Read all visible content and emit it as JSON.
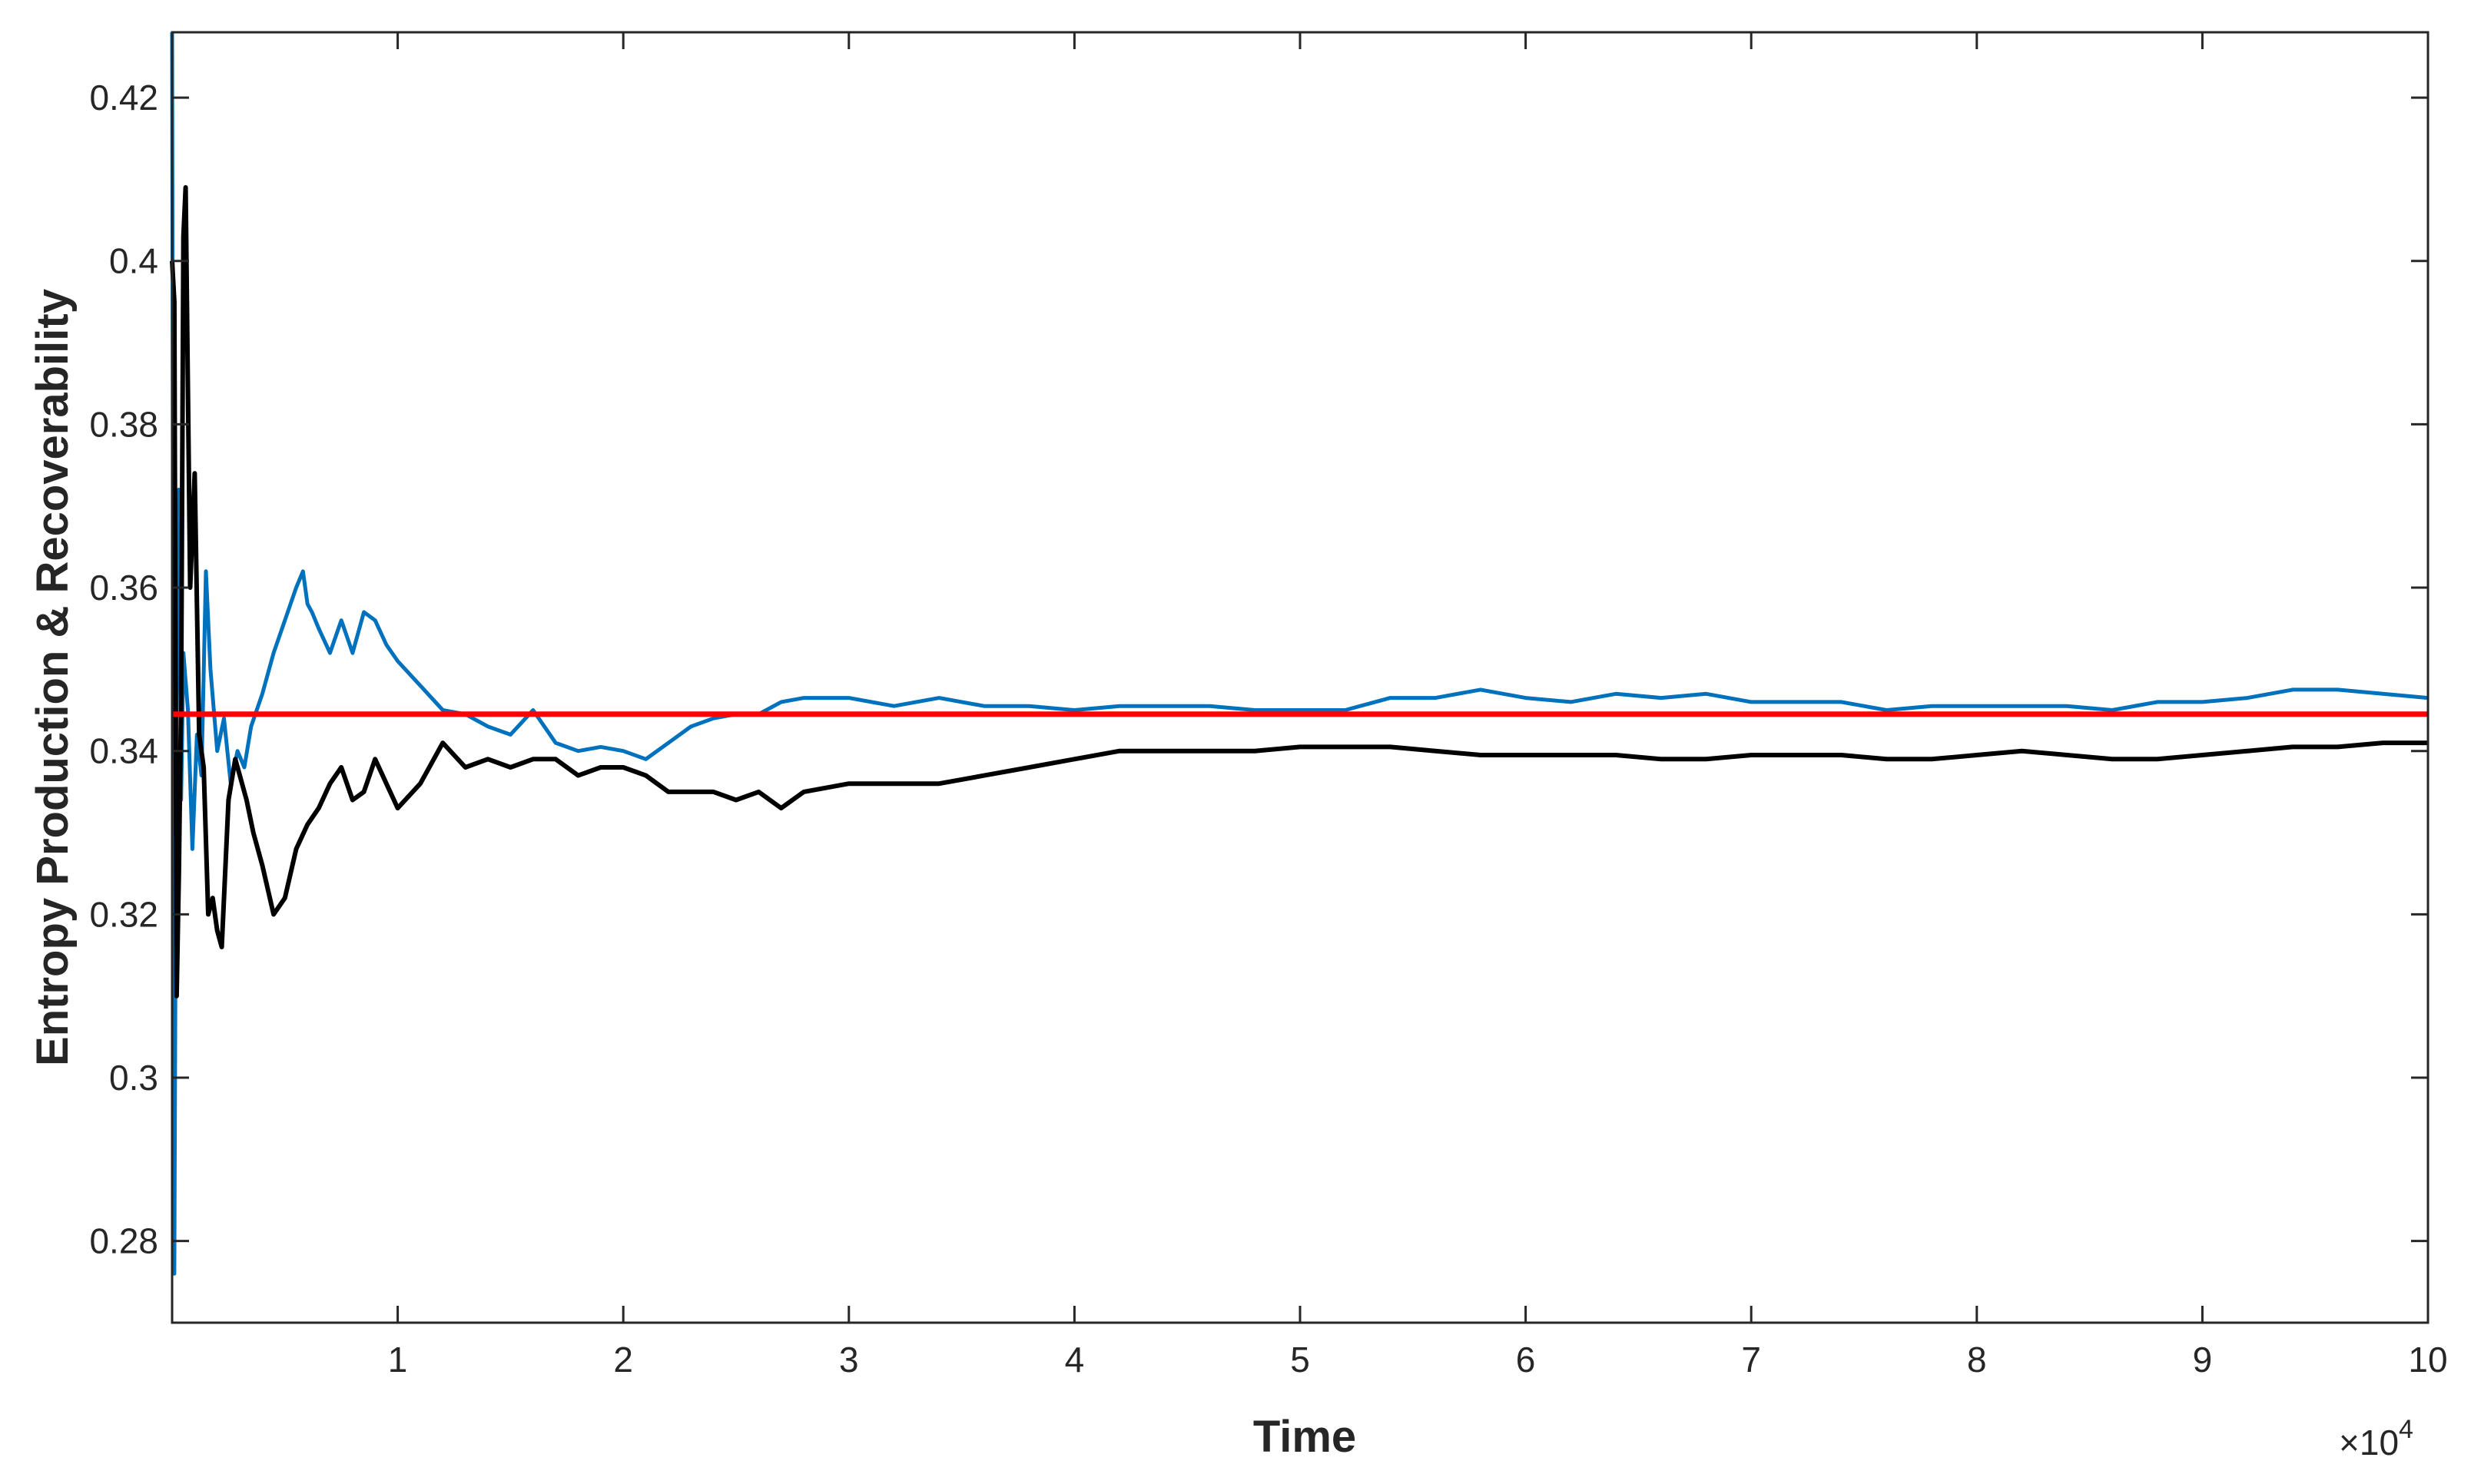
{
  "chart_data": {
    "type": "line",
    "xlabel": "Time",
    "ylabel": "Entropy Production & Recoverability",
    "x_multiplier_label": "×10",
    "x_multiplier_exponent": "4",
    "xlim": [
      0,
      100000
    ],
    "ylim": [
      0.27,
      0.428
    ],
    "x_ticks": [
      10000,
      20000,
      30000,
      40000,
      50000,
      60000,
      70000,
      80000,
      90000,
      100000
    ],
    "x_tick_labels": [
      "1",
      "2",
      "3",
      "4",
      "5",
      "6",
      "7",
      "8",
      "9",
      "10"
    ],
    "y_ticks": [
      0.28,
      0.3,
      0.32,
      0.34,
      0.36,
      0.38,
      0.4,
      0.42
    ],
    "y_tick_labels": [
      "0.28",
      "0.3",
      "0.32",
      "0.34",
      "0.36",
      "0.38",
      "0.4",
      "0.42"
    ],
    "grid": false,
    "series": [
      {
        "color": "#0072BD",
        "x": [
          0,
          100,
          200,
          300,
          400,
          500,
          700,
          900,
          1100,
          1300,
          1500,
          1700,
          2000,
          2300,
          2600,
          2900,
          3200,
          3500,
          4000,
          4500,
          5000,
          5500,
          5800,
          6000,
          6200,
          6500,
          7000,
          7500,
          8000,
          8500,
          9000,
          9500,
          10000,
          11000,
          12000,
          13000,
          14000,
          15000,
          16000,
          17000,
          18000,
          19000,
          20000,
          21000,
          22000,
          23000,
          24000,
          25000,
          26000,
          27000,
          28000,
          30000,
          32000,
          34000,
          36000,
          38000,
          40000,
          42000,
          44000,
          46000,
          48000,
          50000,
          52000,
          54000,
          56000,
          58000,
          60000,
          62000,
          64000,
          66000,
          68000,
          70000,
          72000,
          74000,
          76000,
          78000,
          80000,
          82000,
          84000,
          86000,
          88000,
          90000,
          92000,
          94000,
          96000,
          98000,
          100000
        ],
        "y": [
          0.428,
          0.276,
          0.355,
          0.372,
          0.334,
          0.352,
          0.345,
          0.328,
          0.342,
          0.337,
          0.362,
          0.35,
          0.34,
          0.344,
          0.336,
          0.34,
          0.338,
          0.343,
          0.347,
          0.352,
          0.356,
          0.36,
          0.362,
          0.358,
          0.357,
          0.355,
          0.352,
          0.356,
          0.352,
          0.357,
          0.356,
          0.353,
          0.351,
          0.348,
          0.345,
          0.3445,
          0.343,
          0.342,
          0.345,
          0.341,
          0.34,
          0.3405,
          0.34,
          0.339,
          0.341,
          0.343,
          0.344,
          0.3445,
          0.3445,
          0.346,
          0.3465,
          0.3465,
          0.3455,
          0.3465,
          0.3455,
          0.3455,
          0.345,
          0.3455,
          0.3455,
          0.3455,
          0.345,
          0.345,
          0.345,
          0.3465,
          0.3465,
          0.3475,
          0.3465,
          0.346,
          0.347,
          0.3465,
          0.347,
          0.346,
          0.346,
          0.346,
          0.345,
          0.3455,
          0.3455,
          0.3455,
          0.3455,
          0.345,
          0.346,
          0.346,
          0.3465,
          0.3475,
          0.3475,
          0.347,
          0.3465
        ]
      },
      {
        "color": "#000000",
        "x": [
          0,
          100,
          200,
          300,
          400,
          500,
          600,
          800,
          1000,
          1200,
          1400,
          1600,
          1800,
          2000,
          2200,
          2500,
          2800,
          3000,
          3300,
          3600,
          4000,
          4500,
          5000,
          5500,
          6000,
          6500,
          7000,
          7500,
          8000,
          8500,
          9000,
          9500,
          10000,
          11000,
          12000,
          13000,
          14000,
          15000,
          16000,
          17000,
          18000,
          19000,
          20000,
          21000,
          22000,
          23000,
          24000,
          25000,
          26000,
          27000,
          28000,
          30000,
          32000,
          34000,
          36000,
          38000,
          40000,
          42000,
          44000,
          46000,
          48000,
          50000,
          52000,
          54000,
          56000,
          58000,
          60000,
          62000,
          64000,
          66000,
          68000,
          70000,
          72000,
          74000,
          76000,
          78000,
          80000,
          82000,
          84000,
          86000,
          88000,
          90000,
          92000,
          94000,
          96000,
          98000,
          100000
        ],
        "y": [
          0.4,
          0.395,
          0.31,
          0.325,
          0.346,
          0.403,
          0.409,
          0.36,
          0.374,
          0.342,
          0.338,
          0.32,
          0.322,
          0.318,
          0.316,
          0.334,
          0.339,
          0.337,
          0.334,
          0.33,
          0.326,
          0.32,
          0.322,
          0.328,
          0.331,
          0.333,
          0.336,
          0.338,
          0.334,
          0.335,
          0.339,
          0.336,
          0.333,
          0.336,
          0.341,
          0.338,
          0.339,
          0.338,
          0.339,
          0.339,
          0.337,
          0.338,
          0.338,
          0.337,
          0.335,
          0.335,
          0.335,
          0.334,
          0.335,
          0.333,
          0.335,
          0.336,
          0.336,
          0.336,
          0.337,
          0.338,
          0.339,
          0.34,
          0.34,
          0.34,
          0.34,
          0.3405,
          0.3405,
          0.3405,
          0.34,
          0.3395,
          0.3395,
          0.3395,
          0.3395,
          0.339,
          0.339,
          0.3395,
          0.3395,
          0.3395,
          0.339,
          0.339,
          0.3395,
          0.34,
          0.3395,
          0.339,
          0.339,
          0.3395,
          0.34,
          0.3405,
          0.3405,
          0.341,
          0.341
        ]
      },
      {
        "color": "#FF0000",
        "x": [
          0,
          100000
        ],
        "y": [
          0.3445,
          0.3445
        ]
      }
    ]
  }
}
